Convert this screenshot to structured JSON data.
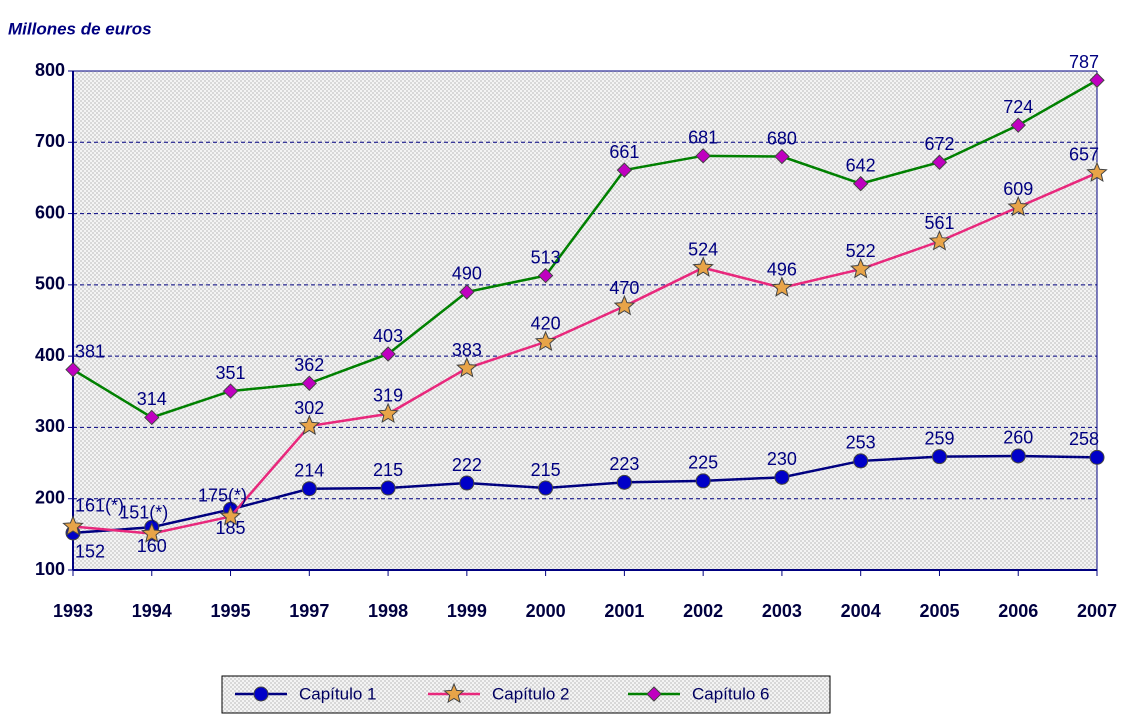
{
  "chart_data": {
    "type": "line",
    "y_label": "Millones de euros",
    "categories": [
      "1993",
      "1994",
      "1995",
      "1997",
      "1998",
      "1999",
      "2000",
      "2001",
      "2002",
      "2003",
      "2004",
      "2005",
      "2006",
      "2007"
    ],
    "series": [
      {
        "name": "Capítulo 1",
        "color": "#000080",
        "marker": "circle",
        "marker_color": "#0000c8",
        "values": [
          152,
          160,
          185,
          214,
          215,
          222,
          215,
          223,
          225,
          230,
          253,
          259,
          260,
          258
        ]
      },
      {
        "name": "Capítulo 2",
        "color": "#e8287c",
        "marker": "star",
        "marker_color": "#e8a448",
        "values": [
          161,
          151,
          175,
          302,
          319,
          383,
          420,
          470,
          524,
          496,
          522,
          561,
          609,
          657
        ],
        "value_labels": [
          "161(*)",
          "151(*)",
          "175(*)",
          "302",
          "319",
          "383",
          "420",
          "470",
          "524",
          "496",
          "522",
          "561",
          "609",
          "657"
        ]
      },
      {
        "name": "Capítulo 6",
        "color": "#008000",
        "marker": "diamond",
        "marker_color": "#c000c0",
        "values": [
          381,
          314,
          351,
          362,
          403,
          490,
          513,
          661,
          681,
          680,
          642,
          672,
          724,
          787
        ]
      }
    ],
    "ylim": [
      100,
      800
    ],
    "yticks": [
      100,
      200,
      300,
      400,
      500,
      600,
      700,
      800
    ],
    "grid": true,
    "legend": "bottom"
  }
}
